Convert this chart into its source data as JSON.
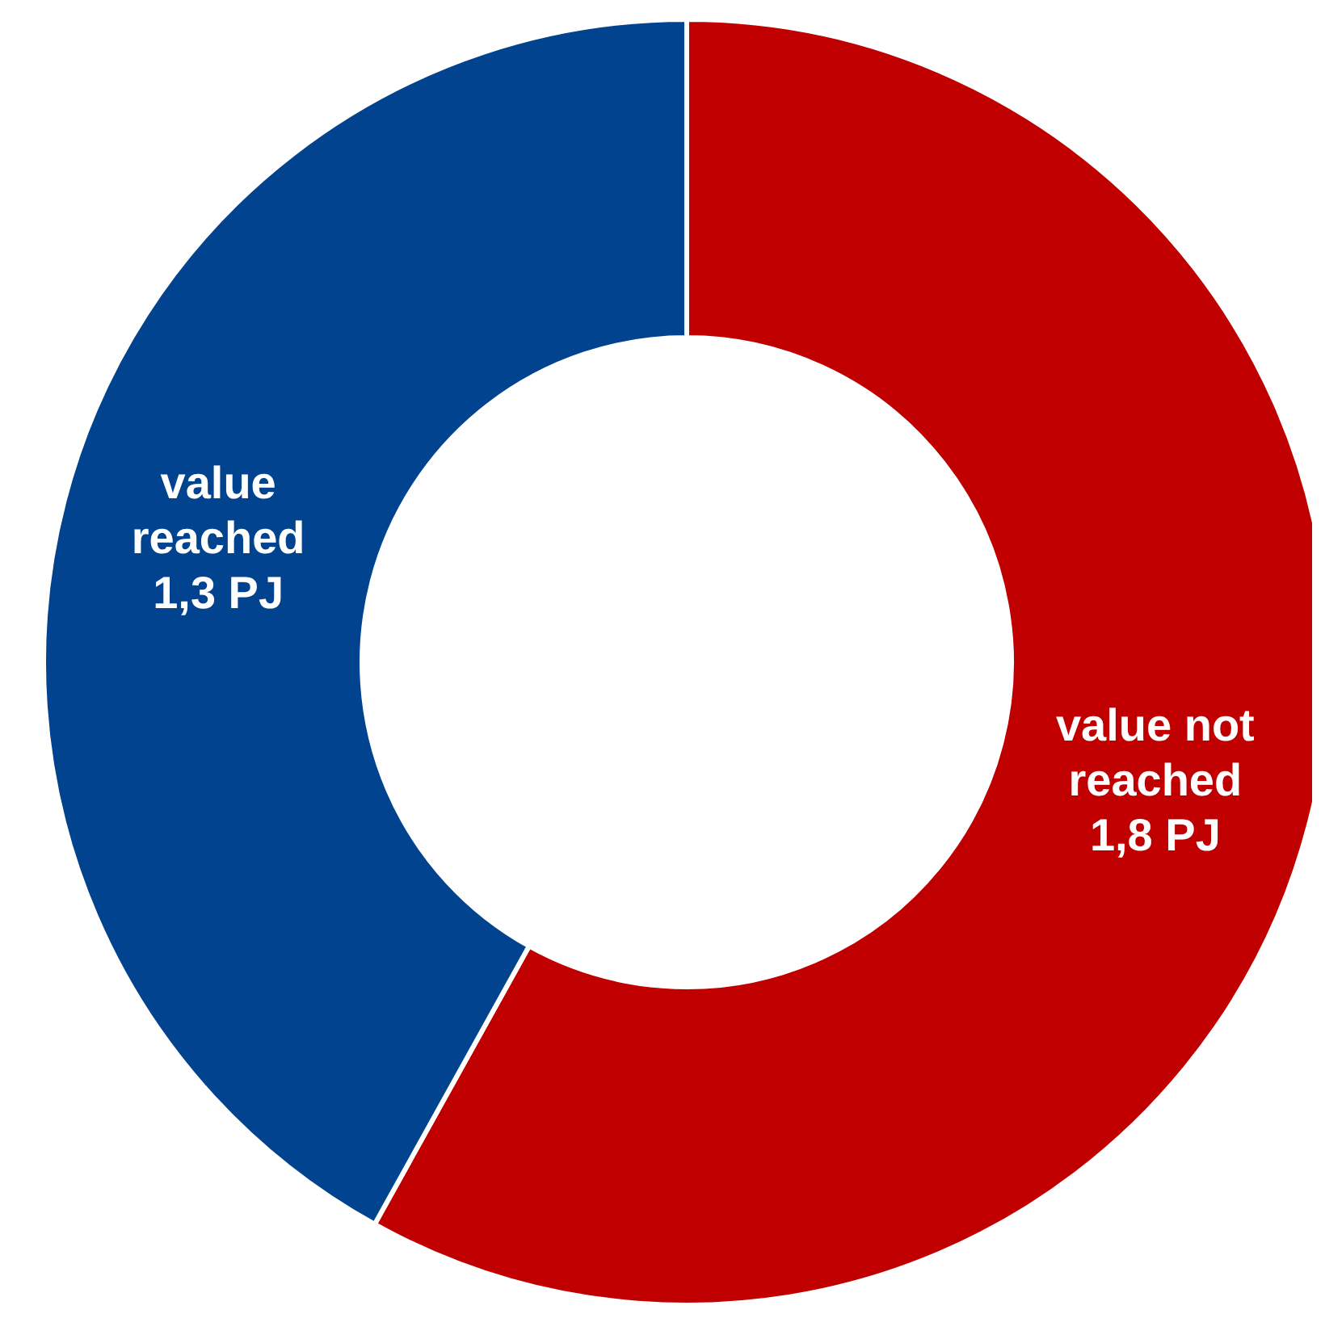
{
  "chart_data": {
    "type": "donut",
    "categories": [
      "value not reached",
      "value reached"
    ],
    "values": [
      1.8,
      1.3
    ],
    "value_labels": [
      "1,8 PJ",
      "1,3 PJ"
    ],
    "colors": [
      "#c00000",
      "#02438f"
    ]
  }
}
